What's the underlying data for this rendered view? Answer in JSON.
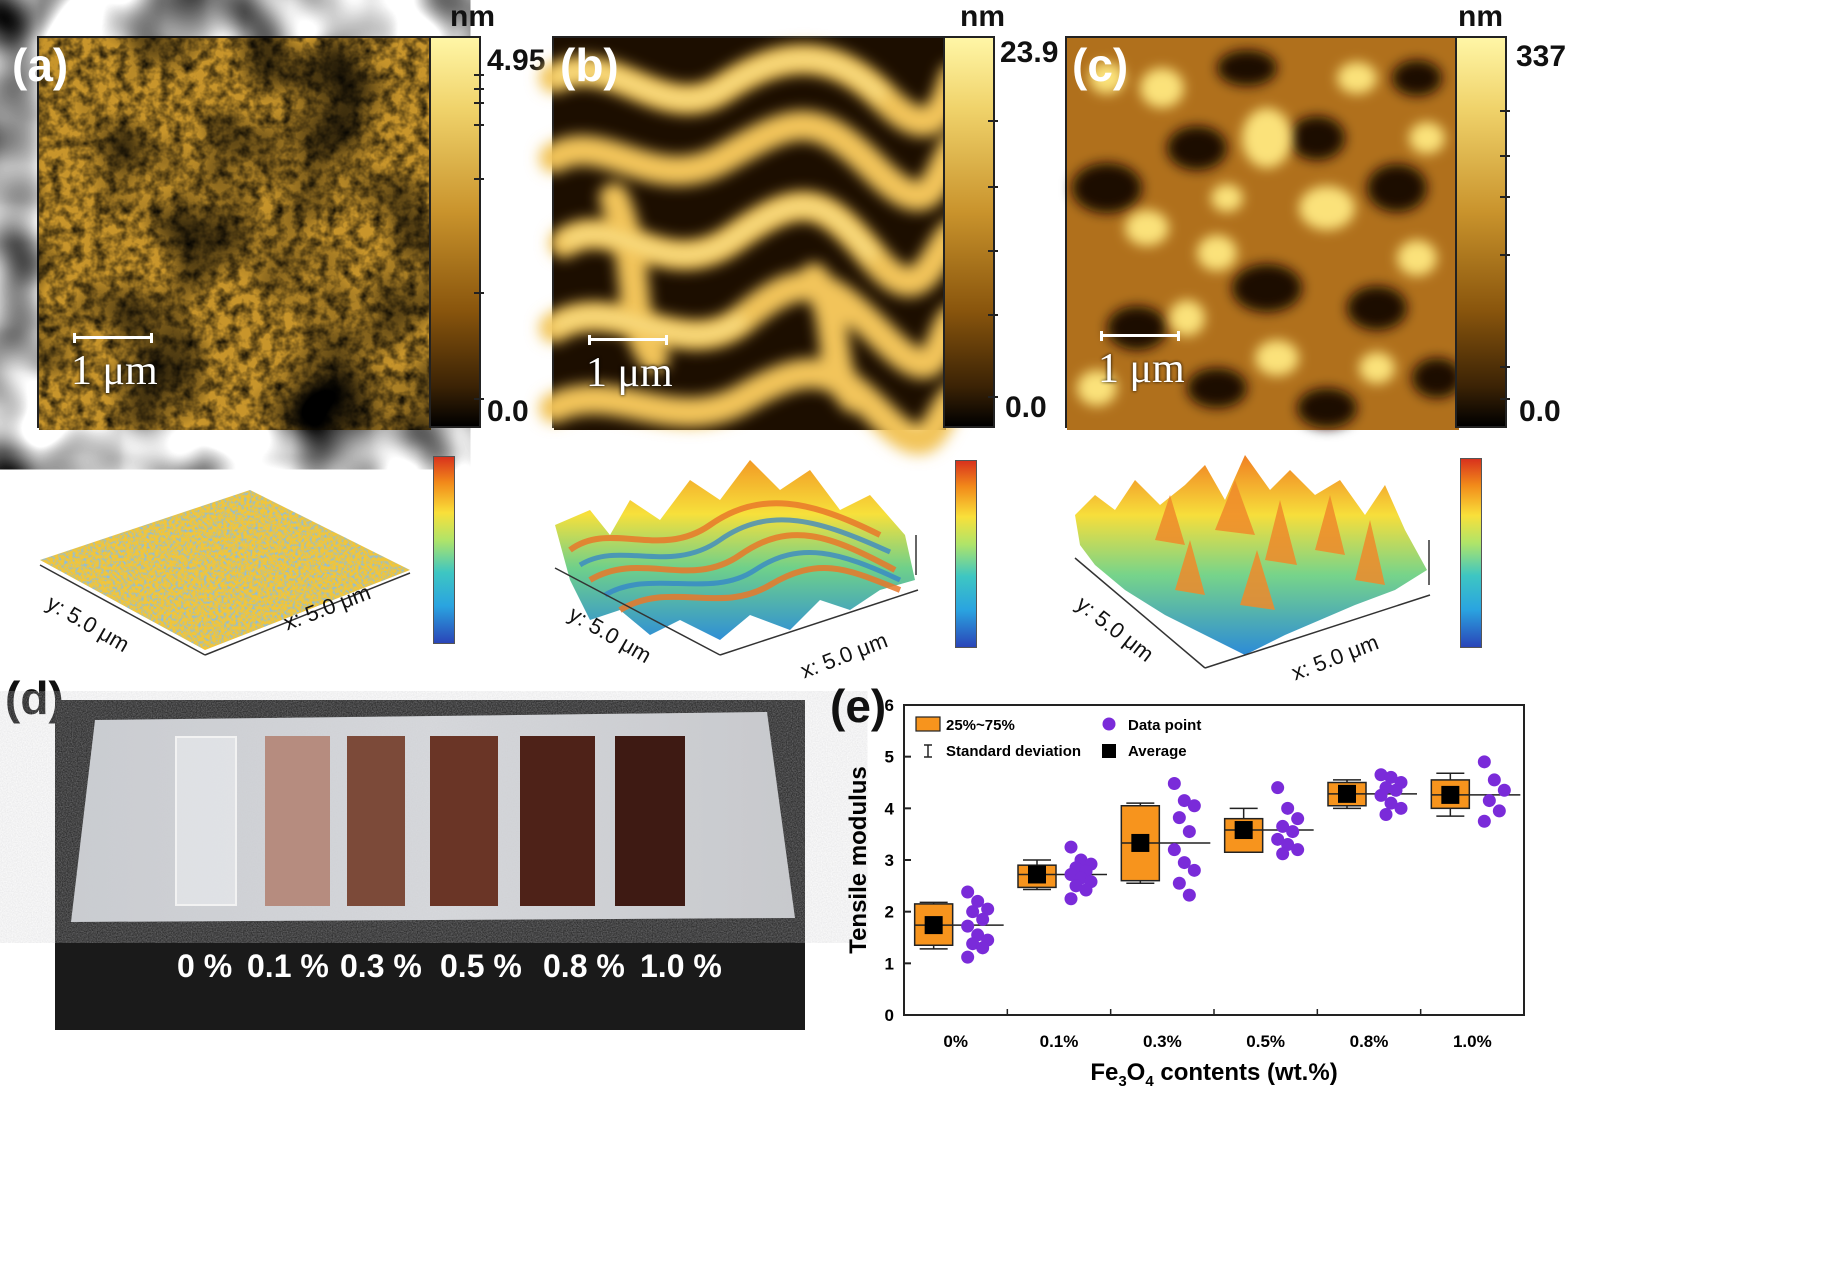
{
  "panels": {
    "a": {
      "label": "(a)",
      "unit": "nm",
      "max": "4.95",
      "min": "0.0",
      "scale_bar": "1 μm",
      "axis_y": "y: 5.0 μm",
      "axis_x": "x: 5.0 μm"
    },
    "b": {
      "label": "(b)",
      "unit": "nm",
      "max": "23.9",
      "min": "0.0",
      "scale_bar": "1 μm",
      "axis_y": "y: 5.0 μm",
      "axis_x": "x: 5.0 μm"
    },
    "c": {
      "label": "(c)",
      "unit": "nm",
      "max": "337",
      "min": "0.0",
      "scale_bar": "1 μm",
      "axis_y": "y: 5.0 μm",
      "axis_x": "x: 5.0 μm"
    },
    "d": {
      "label": "(d)",
      "samples": [
        "0 %",
        "0.1 %",
        "0.3 %",
        "0.5 %",
        "0.8 %",
        "1.0 %"
      ],
      "sample_colors": [
        "#d9dcdf",
        "#b68c7f",
        "#7c4a39",
        "#6a3526",
        "#4e2218",
        "#3e1a13"
      ]
    },
    "e": {
      "label": "(e)"
    }
  },
  "chart_data": {
    "type": "box",
    "ylabel": "Tensile modulus",
    "xlabel_main": "Fe",
    "xlabel_sub": "3",
    "xlabel_main2": "O",
    "xlabel_sub2": "4",
    "xlabel_tail": " contents (wt.%)",
    "ylim": [
      0,
      6
    ],
    "yticks": [
      "0",
      "1",
      "2",
      "3",
      "4",
      "5",
      "6"
    ],
    "categories": [
      "0%",
      "0.1%",
      "0.3%",
      "0.5%",
      "0.8%",
      "1.0%"
    ],
    "legend": {
      "box": "25%~75%",
      "whisker": "Standard deviation",
      "points": "Data point",
      "mean": "Average"
    },
    "colors": {
      "box": "#f7941d",
      "points": "#7a2bd9",
      "mean": "#000000"
    },
    "boxes": [
      {
        "q1": 1.35,
        "q3": 2.15,
        "whisker_low": 1.28,
        "whisker_high": 2.18,
        "mean": 1.74,
        "median": 1.74
      },
      {
        "q1": 2.47,
        "q3": 2.9,
        "whisker_low": 2.43,
        "whisker_high": 3.0,
        "mean": 2.72,
        "median": 2.72
      },
      {
        "q1": 2.6,
        "q3": 4.05,
        "whisker_low": 2.55,
        "whisker_high": 4.1,
        "mean": 3.33,
        "median": 3.33
      },
      {
        "q1": 3.15,
        "q3": 3.8,
        "whisker_low": 3.15,
        "whisker_high": 4.0,
        "mean": 3.58,
        "median": 3.58
      },
      {
        "q1": 4.05,
        "q3": 4.5,
        "whisker_low": 4.0,
        "whisker_high": 4.55,
        "mean": 4.28,
        "median": 4.28
      },
      {
        "q1": 4.0,
        "q3": 4.55,
        "whisker_low": 3.85,
        "whisker_high": 4.68,
        "mean": 4.26,
        "median": 4.26
      }
    ],
    "points": [
      [
        2.38,
        2.2,
        2.05,
        2.0,
        1.85,
        1.72,
        1.55,
        1.45,
        1.38,
        1.3,
        1.12
      ],
      [
        3.25,
        3.0,
        2.92,
        2.85,
        2.78,
        2.72,
        2.65,
        2.58,
        2.5,
        2.42,
        2.25
      ],
      [
        4.48,
        4.15,
        4.05,
        3.82,
        3.55,
        3.2,
        2.95,
        2.8,
        2.55,
        2.32
      ],
      [
        4.4,
        4.0,
        3.8,
        3.65,
        3.55,
        3.4,
        3.3,
        3.2,
        3.12
      ],
      [
        4.65,
        4.6,
        4.5,
        4.4,
        4.35,
        4.25,
        4.1,
        4.0,
        3.88
      ],
      [
        4.9,
        4.55,
        4.35,
        4.15,
        3.95,
        3.75
      ]
    ]
  }
}
